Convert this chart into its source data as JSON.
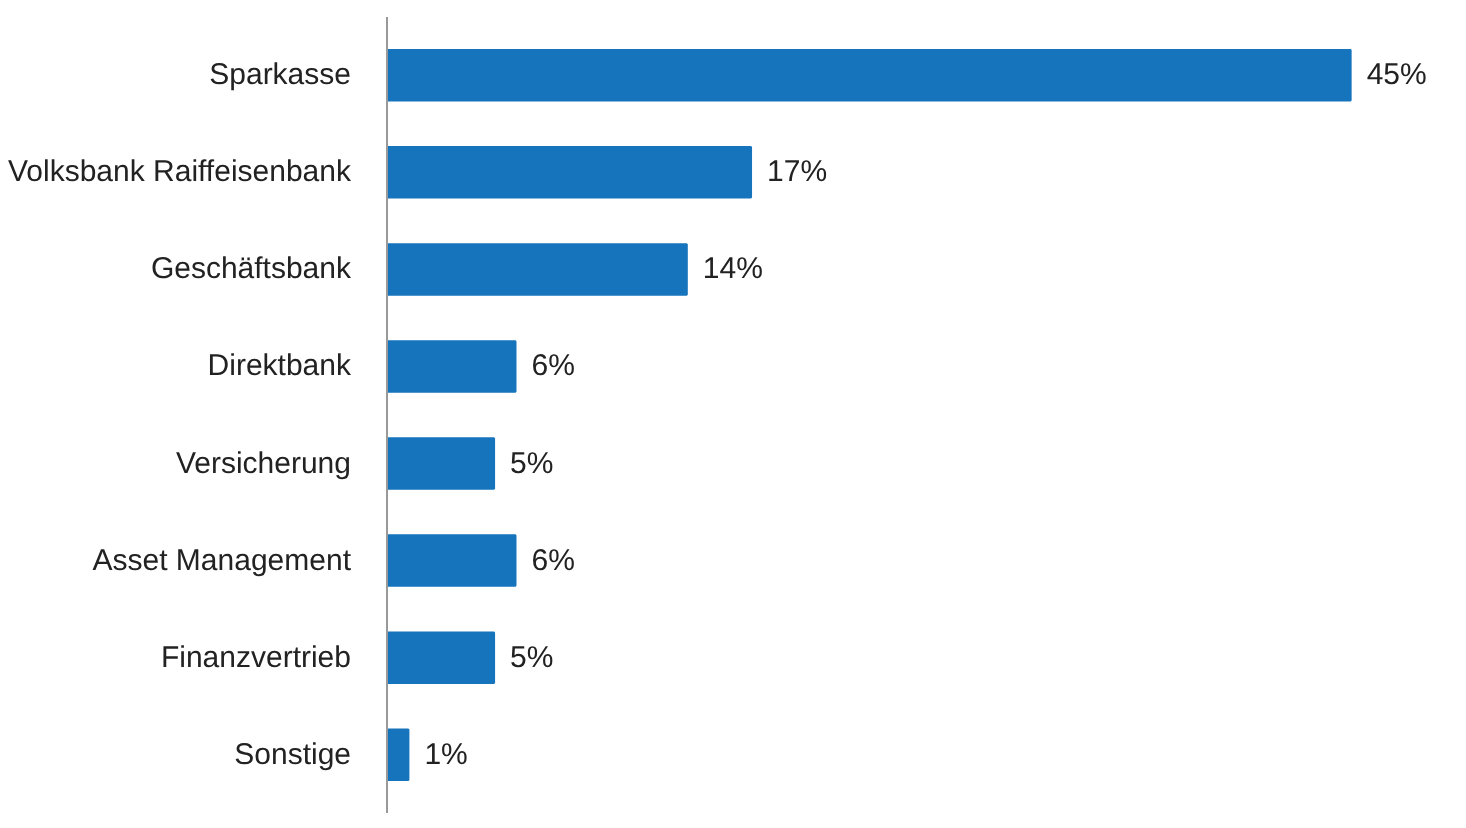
{
  "chart_data": {
    "type": "bar",
    "orientation": "horizontal",
    "categories": [
      "Sparkasse",
      "Volksbank Raiffeisenbank",
      "Geschäftsbank",
      "Direktbank",
      "Versicherung",
      "Asset Management",
      "Finanzvertrieb",
      "Sonstige"
    ],
    "values": [
      45,
      17,
      14,
      6,
      5,
      6,
      5,
      1
    ],
    "value_labels": [
      "45%",
      "17%",
      "14%",
      "6%",
      "5%",
      "6%",
      "5%",
      "1%"
    ],
    "color": "#1674bc"
  }
}
